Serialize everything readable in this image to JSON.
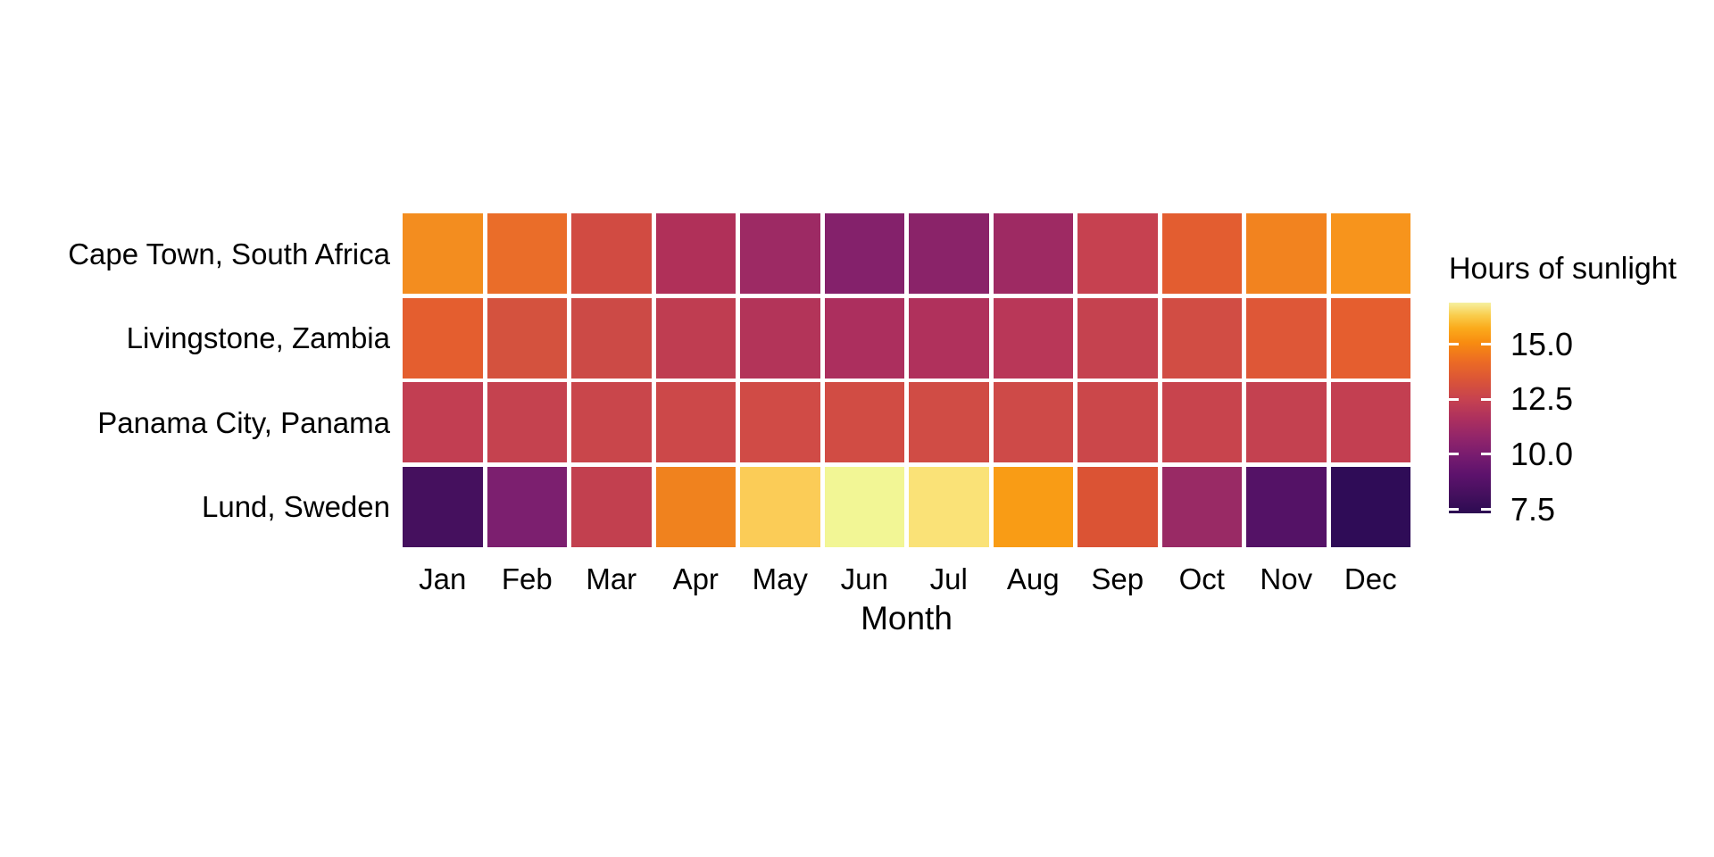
{
  "colors": {
    "background": "#ffffff",
    "text": "#000000",
    "tile_border_gap": "#ffffff"
  },
  "chart_data": {
    "type": "heatmap",
    "title": "",
    "xlabel": "Month",
    "ylabel": "",
    "grid": false,
    "x_categories": [
      "Jan",
      "Feb",
      "Mar",
      "Apr",
      "May",
      "Jun",
      "Jul",
      "Aug",
      "Sep",
      "Oct",
      "Nov",
      "Dec"
    ],
    "y_categories": [
      "Cape Town, South Africa",
      "Livingstone, Zambia",
      "Panama City, Panama",
      "Lund, Sweden"
    ],
    "value_unit": "hours of sunlight",
    "series": [
      {
        "name": "Cape Town, South Africa",
        "values": [
          14.4,
          13.6,
          12.6,
          11.5,
          10.6,
          10.1,
          10.3,
          11.1,
          12.2,
          13.2,
          14.2,
          14.6
        ],
        "colors": [
          "#f38d1f",
          "#ea6d29",
          "#d14b42",
          "#b03059",
          "#9d2a64",
          "#84216b",
          "#8a2369",
          "#9e2a63",
          "#c64150",
          "#e35d30",
          "#f2831f",
          "#f7941c"
        ]
      },
      {
        "name": "Livingstone, Zambia",
        "values": [
          13.0,
          12.7,
          12.2,
          11.7,
          11.3,
          11.1,
          11.2,
          11.6,
          12.0,
          12.5,
          12.9,
          13.1
        ],
        "colors": [
          "#e45e2f",
          "#d4523e",
          "#cc4a46",
          "#bf3d51",
          "#b33459",
          "#ac2f5e",
          "#b0315c",
          "#b93758",
          "#c5424f",
          "#d14d44",
          "#de5737",
          "#e55e2f"
        ]
      },
      {
        "name": "Panama City, Panama",
        "values": [
          11.7,
          11.9,
          12.1,
          12.4,
          12.6,
          12.7,
          12.7,
          12.5,
          12.2,
          11.9,
          11.7,
          11.6
        ],
        "colors": [
          "#c23e52",
          "#c5424f",
          "#c9464b",
          "#cc4849",
          "#d04b46",
          "#d14c44",
          "#d04c45",
          "#ce4a48",
          "#cb474a",
          "#c8444d",
          "#c44150",
          "#c33f51"
        ]
      },
      {
        "name": "Lund, Sweden",
        "values": [
          7.5,
          9.8,
          11.7,
          14.2,
          16.4,
          17.4,
          16.9,
          15.0,
          12.6,
          10.4,
          8.2,
          7.1
        ],
        "colors": [
          "#45105e",
          "#7c1f6f",
          "#c2404f",
          "#f0821e",
          "#fbcc57",
          "#f2f695",
          "#fae277",
          "#f99c15",
          "#db5334",
          "#992a65",
          "#541266",
          "#2f0c57"
        ]
      }
    ],
    "legend": {
      "title": "Hours of sunlight",
      "position": "right",
      "value_range": [
        7.1,
        17.4
      ],
      "ticks": [
        {
          "label": "15.0",
          "frac_from_top": 0.198
        },
        {
          "label": "12.5",
          "frac_from_top": 0.458
        },
        {
          "label": "10.0",
          "frac_from_top": 0.72
        },
        {
          "label": "7.5",
          "frac_from_top": 0.982
        }
      ],
      "gradient_stops": [
        {
          "pos": 0.0,
          "color": "#2c0b52"
        },
        {
          "pos": 0.09,
          "color": "#45105e"
        },
        {
          "pos": 0.18,
          "color": "#5c126c"
        },
        {
          "pos": 0.27,
          "color": "#761b6f"
        },
        {
          "pos": 0.36,
          "color": "#92256a"
        },
        {
          "pos": 0.45,
          "color": "#ad305e"
        },
        {
          "pos": 0.54,
          "color": "#c64250"
        },
        {
          "pos": 0.63,
          "color": "#da5438"
        },
        {
          "pos": 0.72,
          "color": "#ec6b24"
        },
        {
          "pos": 0.81,
          "color": "#f88c10"
        },
        {
          "pos": 0.88,
          "color": "#fbab1c"
        },
        {
          "pos": 0.94,
          "color": "#f9cd4d"
        },
        {
          "pos": 1.0,
          "color": "#f6f0a0"
        }
      ]
    }
  }
}
